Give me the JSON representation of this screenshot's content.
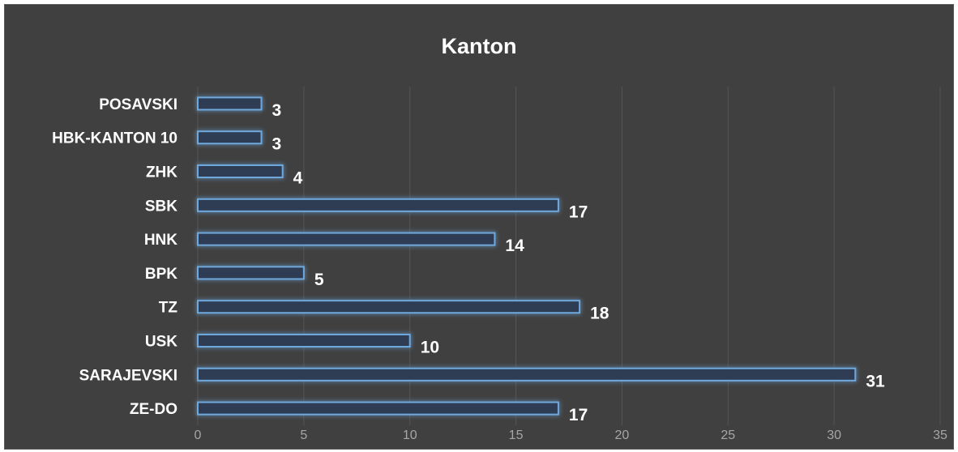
{
  "chart_data": {
    "type": "bar",
    "orientation": "horizontal",
    "title": "Kanton",
    "xlabel": "",
    "ylabel": "",
    "categories": [
      "POSAVSKI",
      "HBK-KANTON 10",
      "ZHK",
      "SBK",
      "HNK",
      "BPK",
      "TZ",
      "USK",
      "SARAJEVSKI",
      "ZE-DO"
    ],
    "values": [
      3,
      3,
      4,
      17,
      14,
      5,
      18,
      10,
      31,
      17
    ],
    "xlim": [
      0,
      35
    ],
    "xticks": [
      0,
      5,
      10,
      15,
      20,
      25,
      30,
      35
    ],
    "grid": true,
    "legend": "none",
    "data_labels": true
  },
  "colors": {
    "background": "#404040",
    "bar_fill": "#2f3e52",
    "bar_stroke": "#6fa8dc",
    "bar_glow": "#3f7fd0",
    "gridline": "#555555",
    "text": "#ffffff",
    "tick_text": "#a6a6a6"
  }
}
